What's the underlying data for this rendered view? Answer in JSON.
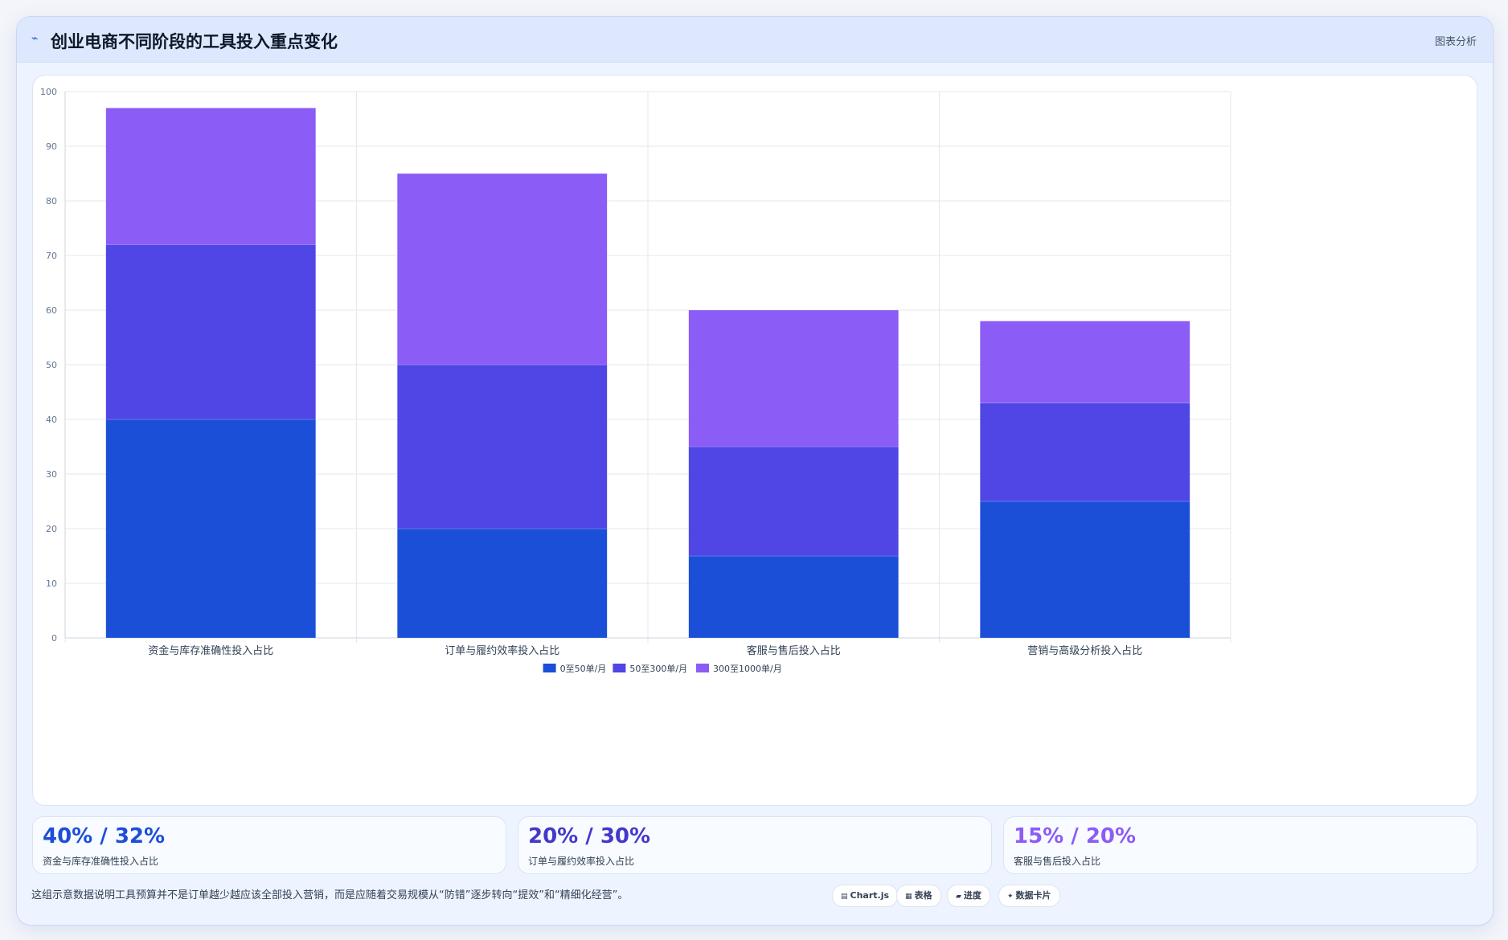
{
  "header": {
    "title": "创业电商不同阶段的工具投入重点变化",
    "tag": "图表分析"
  },
  "chart_data": {
    "type": "bar",
    "stacked": true,
    "title": "",
    "xlabel": "",
    "ylabel": "",
    "ylim": [
      0,
      100
    ],
    "yticks": [
      0,
      10,
      20,
      30,
      40,
      50,
      60,
      70,
      80,
      90,
      100
    ],
    "grid": true,
    "legend_position": "bottom",
    "categories": [
      "资金与库存准确性投入占比",
      "订单与履约效率投入占比",
      "客服与售后投入占比",
      "营销与高级分析投入占比"
    ],
    "series": [
      {
        "name": "0至50单/月",
        "color": "#1b4fd8",
        "values": [
          40,
          20,
          15,
          25
        ]
      },
      {
        "name": "50至300单/月",
        "color": "#4f46e5",
        "values": [
          32,
          30,
          20,
          18
        ]
      },
      {
        "name": "300至1000单/月",
        "color": "#8b5cf6",
        "values": [
          25,
          35,
          25,
          15
        ]
      }
    ]
  },
  "kpis": [
    {
      "value": "40% / 32%",
      "label": "资金与库存准确性投入占比",
      "color": "#1d4ed8"
    },
    {
      "value": "20% / 30%",
      "label": "订单与履约效率投入占比",
      "color": "#4338ca"
    },
    {
      "value": "15% / 20%",
      "label": "客服与售后投入占比",
      "color": "#8b5cf6"
    }
  ],
  "footer": {
    "note": "这组示意数据说明工具预算并不是订单越少越应该全部投入营销，而是应随着交易规模从“防错”逐步转向“提效”和“精细化经营”。",
    "chips": [
      {
        "icon": "▤",
        "icon_name": "chart-icon",
        "label": "Chart.js"
      },
      {
        "icon": "▦",
        "icon_name": "table-icon",
        "label": "表格"
      },
      {
        "icon": "▰",
        "icon_name": "progress-icon",
        "label": "进度"
      },
      {
        "icon": "✦",
        "icon_name": "card-icon",
        "label": "数据卡片"
      }
    ]
  }
}
